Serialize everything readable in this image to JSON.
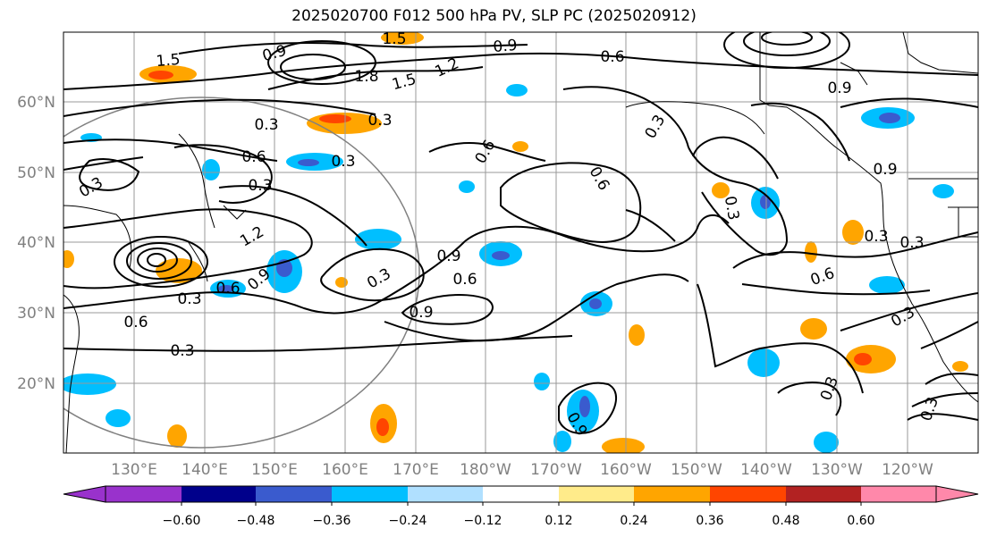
{
  "title": "2025020700 F012 500 hPa PV, SLP PC (2025020912)",
  "lat_labels": [
    "60°N",
    "50°N",
    "40°N",
    "30°N",
    "20°N"
  ],
  "lon_labels": [
    "130°E",
    "140°E",
    "150°E",
    "160°E",
    "170°E",
    "180°W",
    "170°W",
    "160°W",
    "150°W",
    "140°W",
    "130°W",
    "120°W"
  ],
  "colorbar": {
    "colors": [
      "#9932CC",
      "#00008B",
      "#3A5BCE",
      "#00BFFF",
      "#B0E0FF",
      "#FFFFFF",
      "#FFEB8A",
      "#FFA500",
      "#FF4500",
      "#B22222",
      "#FF88AA"
    ],
    "tick_labels": [
      "−0.60",
      "−0.48",
      "−0.36",
      "−0.24",
      "−0.12",
      "0.12",
      "0.24",
      "0.36",
      "0.48",
      "0.60"
    ]
  },
  "contour_labels": [
    "1.5",
    "0.9",
    "1.5",
    "0.9",
    "0.6",
    "1.8",
    "1.5",
    "1.2",
    "0.3",
    "0.6",
    "0.3",
    "0.3",
    "0.9",
    "0.3",
    "0.6",
    "0.3",
    "1.2",
    "0.3",
    "0.6",
    "0.9",
    "0.3",
    "0.6",
    "0.9",
    "0.6",
    "0.9",
    "0.3",
    "0.6",
    "0.3",
    "0.3",
    "0.9",
    "0.9",
    "0.3",
    "0.6",
    "0.3",
    "0.3",
    "0.3",
    "0.3"
  ]
}
